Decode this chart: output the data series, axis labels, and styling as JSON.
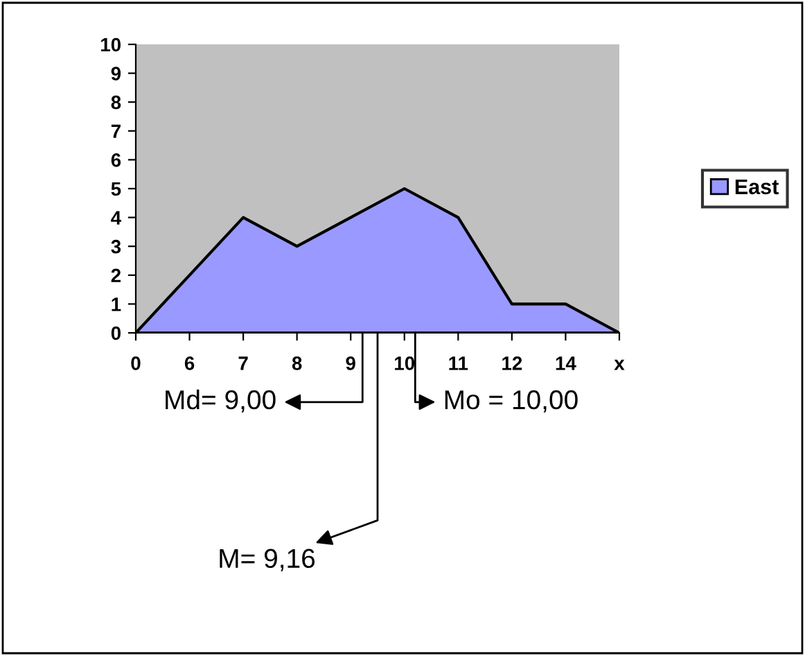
{
  "chart_data": {
    "type": "area",
    "categories": [
      "0",
      "6",
      "7",
      "8",
      "9",
      "10",
      "11",
      "12",
      "14",
      "x"
    ],
    "series": [
      {
        "name": "East",
        "color": "#9999ff",
        "values": [
          0,
          2,
          4,
          3,
          4,
          5,
          4,
          1,
          1,
          0
        ]
      }
    ],
    "ylim": [
      0,
      10
    ],
    "yticks": [
      0,
      1,
      2,
      3,
      4,
      5,
      6,
      7,
      8,
      9,
      10
    ],
    "legend": "right",
    "grid": false,
    "annotations": [
      "Md= 9,00",
      "Mo = 10,00",
      "M= 9,16"
    ]
  }
}
